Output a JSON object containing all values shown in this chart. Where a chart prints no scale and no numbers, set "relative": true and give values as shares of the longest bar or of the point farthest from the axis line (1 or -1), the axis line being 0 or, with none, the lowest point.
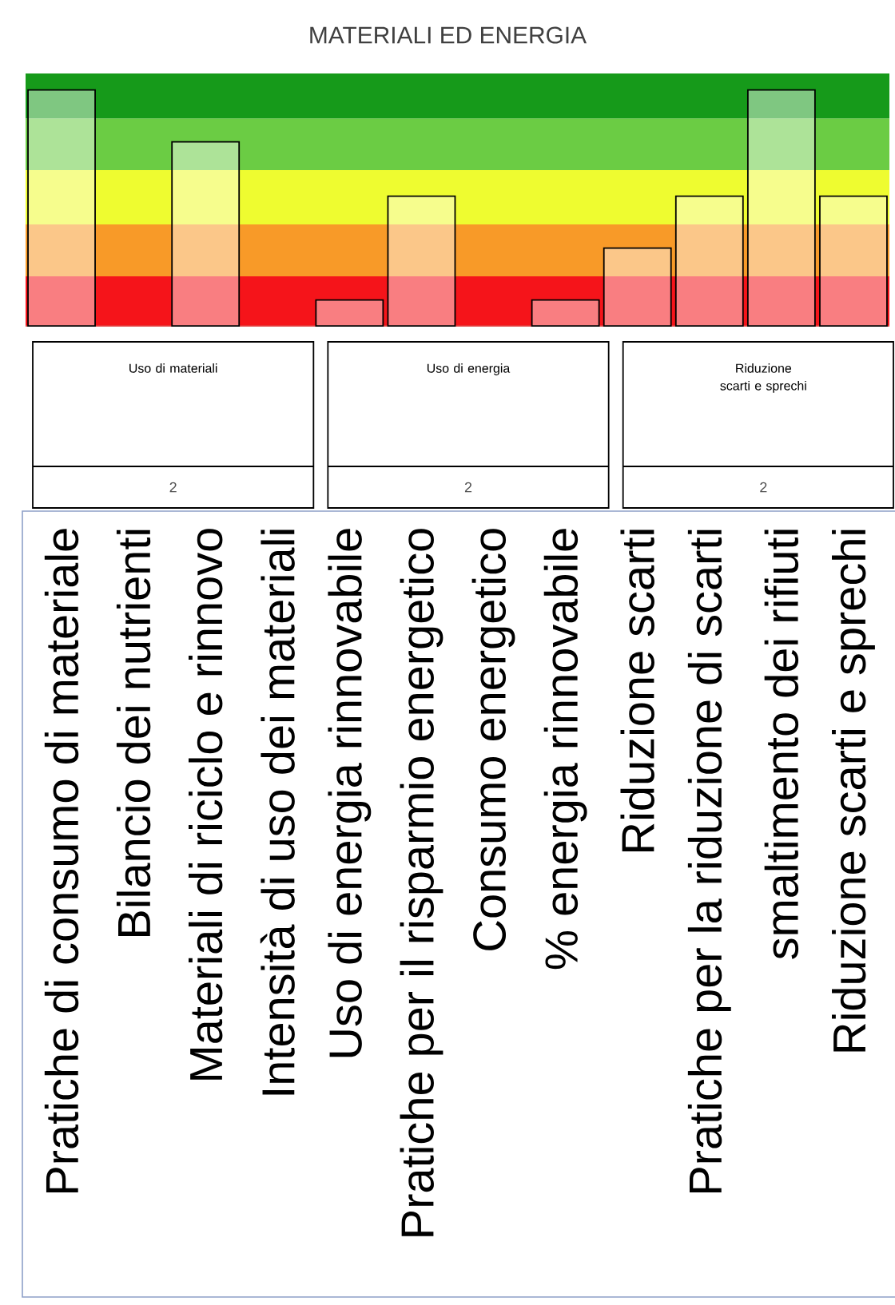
{
  "chart_data": {
    "type": "bar",
    "title": "MATERIALI ED ENERGIA",
    "relative": true,
    "categories": [
      "Pratiche di consumo di materiale",
      "Bilancio dei nutrienti",
      "Materiali di riciclo e rinnovo",
      "Intensità di uso dei materiali",
      "Uso di energia rinnovabile",
      "Pratiche per il risparmio energetico",
      "Consumo energetico",
      "% energia rinnovabile",
      "Riduzione scarti",
      "Pratiche per la riduzione di scarti",
      "smaltimento dei rifiuti",
      "Riduzione scarti e sprechi"
    ],
    "values": [
      1,
      null,
      0.78,
      null,
      0.11,
      0.55,
      null,
      0.11,
      0.33,
      0.55,
      1,
      0.55
    ],
    "color": "#ffffff",
    "bands": [
      {
        "axis": "y",
        "from": 0,
        "to": 0.21,
        "color": "#f5141a"
      },
      {
        "axis": "y",
        "from": 0.21,
        "to": 0.43,
        "color": "#f89a28"
      },
      {
        "axis": "y",
        "from": 0.43,
        "to": 0.66,
        "color": "#eefc30"
      },
      {
        "axis": "y",
        "from": 0.66,
        "to": 0.88,
        "color": "#6bcc44"
      },
      {
        "axis": "y",
        "from": 0.88,
        "to": 1.07,
        "color": "#169a1a"
      }
    ],
    "annotations": [
      "Uso di materiali",
      "2",
      "Uso di energia",
      "2",
      "Riduzione scarti e sprechi",
      "2"
    ]
  }
}
